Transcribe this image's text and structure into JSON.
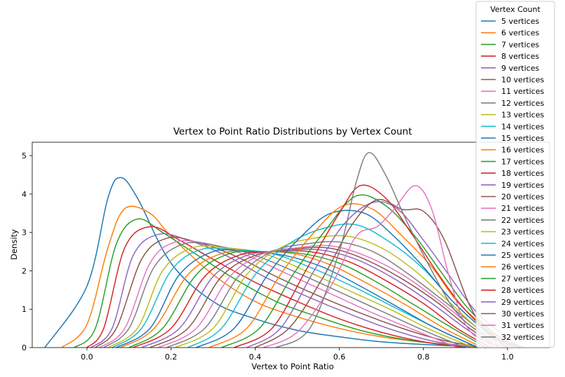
{
  "chart_data": {
    "type": "line",
    "title": "Vertex to Point Ratio Distributions by Vertex Count",
    "xlabel": "Vertex to Point Ratio",
    "ylabel": "Density",
    "xlim": [
      -0.13,
      1.1
    ],
    "ylim": [
      0,
      5.35
    ],
    "xticks": [
      0.0,
      0.2,
      0.4,
      0.6,
      0.8,
      1.0
    ],
    "xtick_labels": [
      "0.0",
      "0.2",
      "0.4",
      "0.6",
      "0.8",
      "1.0"
    ],
    "yticks": [
      0,
      1,
      2,
      3,
      4,
      5
    ],
    "ytick_labels": [
      "0",
      "1",
      "2",
      "3",
      "4",
      "5"
    ],
    "grid": false,
    "legend": {
      "title": "Vertex Count",
      "placement": "top-right"
    },
    "series": [
      {
        "name": "5 vertices",
        "color": "#1f77b4",
        "x": [
          -0.1,
          0.0,
          0.05,
          0.08,
          0.12,
          0.2,
          0.3,
          0.4,
          0.5,
          0.6,
          0.7,
          0.8,
          0.9,
          1.0
        ],
        "y": [
          0,
          1.6,
          3.9,
          4.43,
          3.9,
          2.2,
          1.2,
          0.75,
          0.45,
          0.28,
          0.15,
          0.08,
          0.03,
          0
        ]
      },
      {
        "name": "6 vertices",
        "color": "#ff7f0e",
        "x": [
          -0.06,
          0.0,
          0.05,
          0.09,
          0.15,
          0.2,
          0.3,
          0.4,
          0.5,
          0.6,
          0.7,
          0.8,
          0.9,
          1.0
        ],
        "y": [
          0,
          0.6,
          2.6,
          3.62,
          3.5,
          2.9,
          1.9,
          1.2,
          0.8,
          0.5,
          0.28,
          0.14,
          0.05,
          0
        ]
      },
      {
        "name": "7 vertices",
        "color": "#2ca02c",
        "x": [
          -0.03,
          0.02,
          0.07,
          0.12,
          0.18,
          0.25,
          0.35,
          0.45,
          0.55,
          0.65,
          0.75,
          0.85,
          0.95
        ],
        "y": [
          0,
          0.5,
          2.7,
          3.35,
          3.0,
          2.5,
          1.8,
          1.2,
          0.8,
          0.45,
          0.22,
          0.08,
          0
        ]
      },
      {
        "name": "8 vertices",
        "color": "#d62728",
        "x": [
          0.0,
          0.04,
          0.09,
          0.15,
          0.22,
          0.3,
          0.4,
          0.5,
          0.6,
          0.7,
          0.8,
          0.9
        ],
        "y": [
          0,
          0.5,
          2.6,
          3.15,
          2.8,
          2.3,
          1.7,
          1.2,
          0.75,
          0.4,
          0.15,
          0
        ]
      },
      {
        "name": "9 vertices",
        "color": "#9467bd",
        "x": [
          0.01,
          0.06,
          0.11,
          0.17,
          0.24,
          0.33,
          0.43,
          0.53,
          0.63,
          0.73,
          0.83,
          0.93
        ],
        "y": [
          0,
          0.5,
          2.4,
          2.95,
          2.8,
          2.4,
          1.8,
          1.3,
          0.85,
          0.45,
          0.15,
          0
        ]
      },
      {
        "name": "10 vertices",
        "color": "#8c564b",
        "x": [
          0.02,
          0.07,
          0.13,
          0.19,
          0.26,
          0.35,
          0.45,
          0.55,
          0.65,
          0.75,
          0.85,
          0.95
        ],
        "y": [
          0,
          0.5,
          2.3,
          2.85,
          2.75,
          2.4,
          1.85,
          1.35,
          0.9,
          0.5,
          0.18,
          0
        ]
      },
      {
        "name": "11 vertices",
        "color": "#e377c2",
        "x": [
          0.03,
          0.09,
          0.15,
          0.21,
          0.29,
          0.38,
          0.48,
          0.58,
          0.68,
          0.78,
          0.88
        ],
        "y": [
          0,
          0.5,
          2.2,
          2.75,
          2.7,
          2.4,
          1.9,
          1.4,
          0.9,
          0.45,
          0
        ]
      },
      {
        "name": "12 vertices",
        "color": "#7f7f7f",
        "x": [
          0.04,
          0.1,
          0.16,
          0.23,
          0.31,
          0.4,
          0.5,
          0.6,
          0.7,
          0.8,
          0.9
        ],
        "y": [
          0,
          0.5,
          2.1,
          2.7,
          2.65,
          2.4,
          1.95,
          1.45,
          0.95,
          0.45,
          0
        ]
      },
      {
        "name": "13 vertices",
        "color": "#bcbd22",
        "x": [
          0.05,
          0.12,
          0.18,
          0.25,
          0.33,
          0.42,
          0.52,
          0.62,
          0.72,
          0.82,
          0.92
        ],
        "y": [
          0,
          0.5,
          2.0,
          2.6,
          2.6,
          2.45,
          2.0,
          1.5,
          1.0,
          0.45,
          0
        ]
      },
      {
        "name": "14 vertices",
        "color": "#17becf",
        "x": [
          0.06,
          0.13,
          0.2,
          0.27,
          0.35,
          0.44,
          0.54,
          0.64,
          0.74,
          0.84,
          0.93
        ],
        "y": [
          0,
          0.5,
          2.0,
          2.55,
          2.55,
          2.45,
          2.05,
          1.55,
          1.0,
          0.45,
          0
        ]
      },
      {
        "name": "15 vertices",
        "color": "#1f77b4",
        "x": [
          0.07,
          0.15,
          0.22,
          0.3,
          0.38,
          0.47,
          0.56,
          0.65,
          0.74,
          0.83,
          0.93
        ],
        "y": [
          0,
          0.5,
          1.9,
          2.5,
          2.5,
          2.4,
          2.1,
          1.6,
          1.05,
          0.5,
          0
        ]
      },
      {
        "name": "16 vertices",
        "color": "#ff7f0e",
        "x": [
          0.08,
          0.16,
          0.24,
          0.32,
          0.4,
          0.49,
          0.58,
          0.67,
          0.76,
          0.85,
          0.94
        ],
        "y": [
          0,
          0.5,
          1.9,
          2.45,
          2.5,
          2.45,
          2.15,
          1.65,
          1.1,
          0.5,
          0
        ]
      },
      {
        "name": "17 vertices",
        "color": "#2ca02c",
        "x": [
          0.1,
          0.18,
          0.26,
          0.34,
          0.42,
          0.51,
          0.6,
          0.69,
          0.78,
          0.87,
          0.95
        ],
        "y": [
          0,
          0.5,
          1.9,
          2.45,
          2.5,
          2.45,
          2.2,
          1.7,
          1.1,
          0.5,
          0
        ]
      },
      {
        "name": "18 vertices",
        "color": "#d62728",
        "x": [
          0.11,
          0.2,
          0.28,
          0.36,
          0.44,
          0.53,
          0.62,
          0.71,
          0.8,
          0.88,
          0.96
        ],
        "y": [
          0,
          0.5,
          1.85,
          2.4,
          2.5,
          2.5,
          2.25,
          1.75,
          1.15,
          0.5,
          0
        ]
      },
      {
        "name": "19 vertices",
        "color": "#9467bd",
        "x": [
          0.13,
          0.22,
          0.3,
          0.38,
          0.46,
          0.55,
          0.64,
          0.73,
          0.82,
          0.9,
          0.97
        ],
        "y": [
          0,
          0.5,
          1.85,
          2.4,
          2.5,
          2.55,
          2.3,
          1.8,
          1.15,
          0.5,
          0
        ]
      },
      {
        "name": "20 vertices",
        "color": "#8c564b",
        "x": [
          0.15,
          0.24,
          0.32,
          0.4,
          0.48,
          0.57,
          0.65,
          0.74,
          0.83,
          0.91,
          0.98
        ],
        "y": [
          0,
          0.5,
          1.85,
          2.4,
          2.55,
          2.6,
          2.35,
          1.85,
          1.2,
          0.5,
          0
        ]
      },
      {
        "name": "21 vertices",
        "color": "#e377c2",
        "x": [
          0.17,
          0.26,
          0.34,
          0.42,
          0.5,
          0.58,
          0.66,
          0.75,
          0.84,
          0.92,
          0.99
        ],
        "y": [
          0,
          0.5,
          1.85,
          2.45,
          2.6,
          2.65,
          2.4,
          1.9,
          1.2,
          0.5,
          0
        ]
      },
      {
        "name": "22 vertices",
        "color": "#7f7f7f",
        "x": [
          0.19,
          0.28,
          0.36,
          0.44,
          0.52,
          0.6,
          0.68,
          0.76,
          0.85,
          0.93,
          1.0
        ],
        "y": [
          0,
          0.5,
          1.85,
          2.5,
          2.7,
          2.75,
          2.5,
          1.95,
          1.2,
          0.5,
          0
        ]
      },
      {
        "name": "23 vertices",
        "color": "#bcbd22",
        "x": [
          0.21,
          0.3,
          0.38,
          0.46,
          0.54,
          0.62,
          0.7,
          0.78,
          0.86,
          0.93,
          1.0
        ],
        "y": [
          0,
          0.5,
          1.9,
          2.6,
          2.85,
          2.9,
          2.6,
          2.0,
          1.2,
          0.5,
          0
        ]
      },
      {
        "name": "24 vertices",
        "color": "#17becf",
        "x": [
          0.24,
          0.32,
          0.4,
          0.48,
          0.56,
          0.64,
          0.72,
          0.8,
          0.87,
          0.94,
          1.0
        ],
        "y": [
          0,
          0.5,
          1.9,
          2.7,
          3.1,
          3.2,
          2.75,
          2.05,
          1.2,
          0.5,
          0
        ]
      },
      {
        "name": "25 vertices",
        "color": "#1f77b4",
        "x": [
          0.26,
          0.35,
          0.43,
          0.51,
          0.58,
          0.66,
          0.73,
          0.8,
          0.87,
          0.94,
          1.0
        ],
        "y": [
          0,
          0.5,
          1.9,
          2.9,
          3.5,
          3.5,
          2.9,
          2.1,
          1.2,
          0.5,
          0
        ]
      },
      {
        "name": "26 vertices",
        "color": "#ff7f0e",
        "x": [
          0.29,
          0.38,
          0.46,
          0.54,
          0.61,
          0.68,
          0.75,
          0.82,
          0.88,
          0.95,
          1.01
        ],
        "y": [
          0,
          0.5,
          1.9,
          3.0,
          3.7,
          3.6,
          2.9,
          2.1,
          1.2,
          0.5,
          0
        ]
      },
      {
        "name": "27 vertices",
        "color": "#2ca02c",
        "x": [
          0.32,
          0.41,
          0.49,
          0.57,
          0.64,
          0.71,
          0.78,
          0.84,
          0.9,
          0.96,
          1.02
        ],
        "y": [
          0,
          0.5,
          1.9,
          3.1,
          3.95,
          3.7,
          2.9,
          2.0,
          1.1,
          0.45,
          0
        ]
      },
      {
        "name": "28 vertices",
        "color": "#d62728",
        "x": [
          0.35,
          0.44,
          0.52,
          0.6,
          0.65,
          0.71,
          0.77,
          0.83,
          0.89,
          0.95,
          1.01
        ],
        "y": [
          0,
          0.5,
          2.0,
          3.5,
          4.22,
          3.9,
          3.0,
          2.0,
          1.1,
          0.45,
          0
        ]
      },
      {
        "name": "29 vertices",
        "color": "#9467bd",
        "x": [
          0.38,
          0.46,
          0.54,
          0.61,
          0.68,
          0.74,
          0.8,
          0.86,
          0.92,
          0.98,
          1.03
        ],
        "y": [
          0,
          0.5,
          2.0,
          3.2,
          3.78,
          3.6,
          2.8,
          1.9,
          1.0,
          0.4,
          0
        ]
      },
      {
        "name": "30 vertices",
        "color": "#8c564b",
        "x": [
          0.4,
          0.48,
          0.56,
          0.63,
          0.69,
          0.75,
          0.8,
          0.85,
          0.91,
          0.96,
          1.04
        ],
        "y": [
          0,
          0.5,
          1.8,
          3.2,
          3.85,
          3.6,
          3.55,
          2.8,
          1.1,
          0.35,
          0
        ]
      },
      {
        "name": "31 vertices",
        "color": "#e377c2",
        "x": [
          0.42,
          0.5,
          0.58,
          0.64,
          0.69,
          0.73,
          0.78,
          0.82,
          0.86,
          0.9,
          0.95,
          1.03
        ],
        "y": [
          0,
          0.4,
          1.6,
          2.9,
          3.15,
          3.6,
          4.22,
          3.6,
          1.9,
          0.6,
          0.15,
          0
        ]
      },
      {
        "name": "32 vertices",
        "color": "#7f7f7f",
        "x": [
          0.45,
          0.53,
          0.6,
          0.64,
          0.67,
          0.71,
          0.76,
          0.82,
          0.88,
          0.95,
          1.03
        ],
        "y": [
          0,
          0.5,
          2.5,
          4.3,
          5.08,
          4.5,
          3.3,
          2.0,
          0.9,
          0.3,
          0
        ]
      }
    ]
  }
}
